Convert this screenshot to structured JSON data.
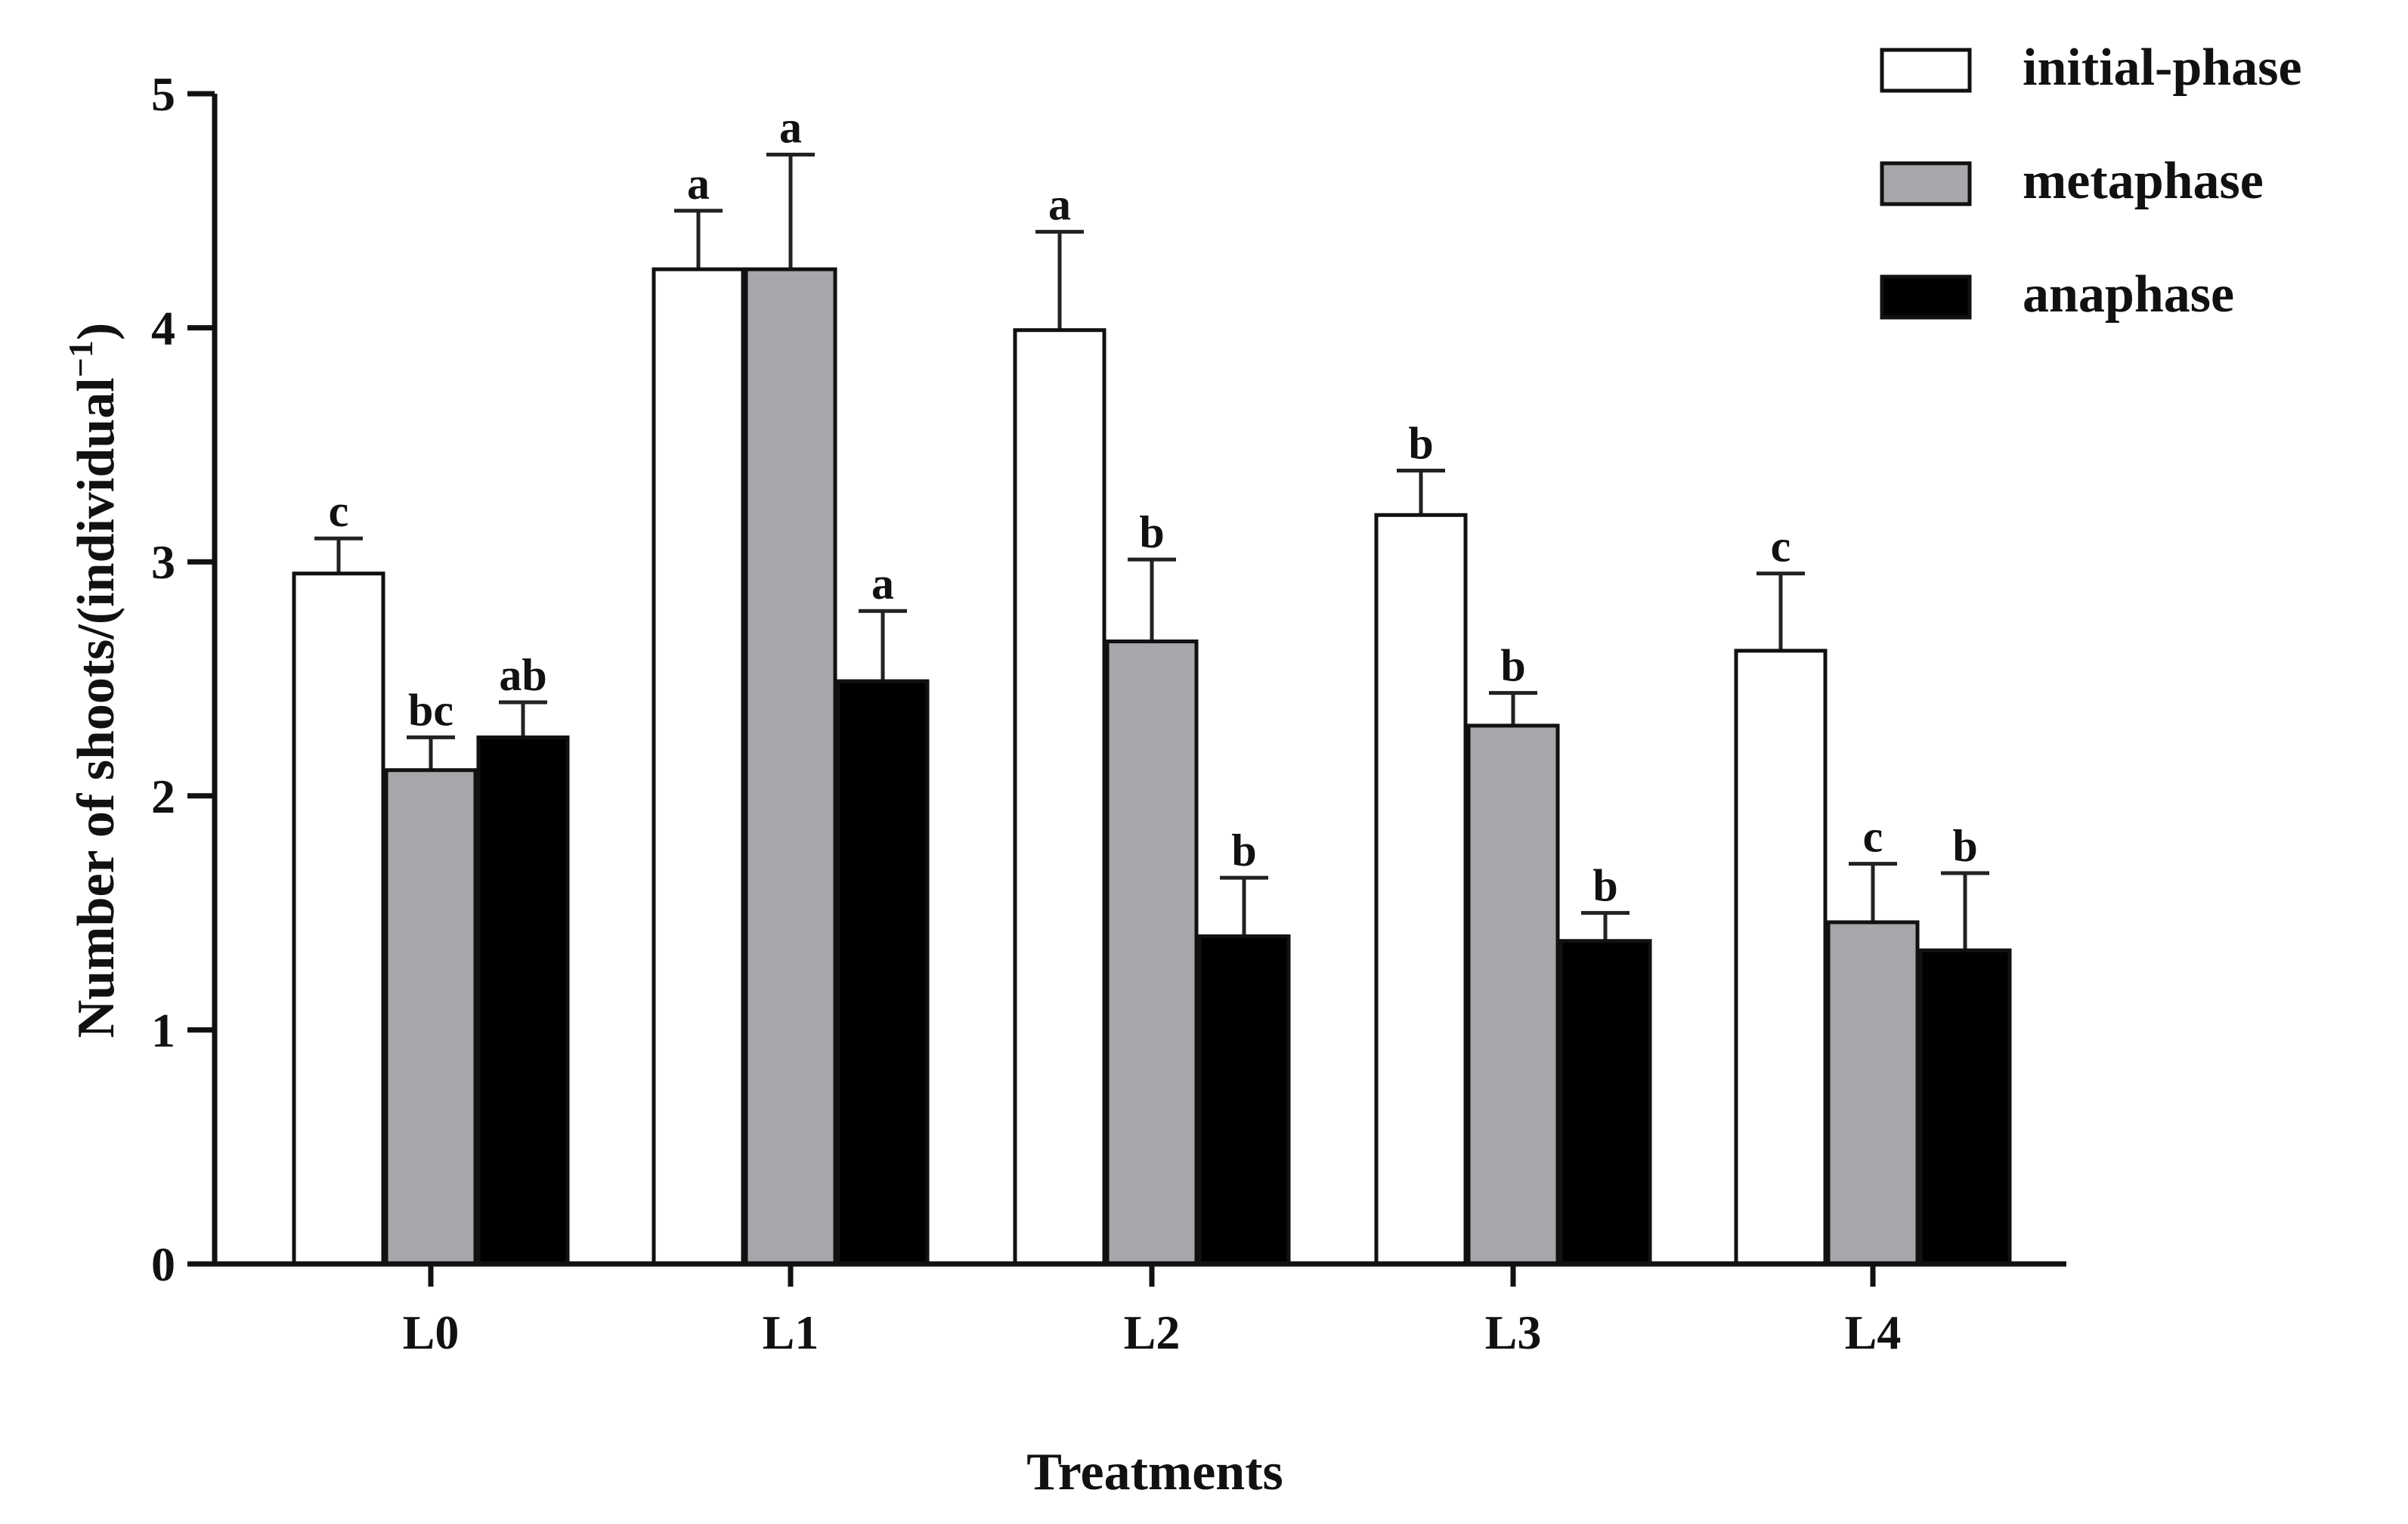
{
  "chart_data": {
    "type": "bar",
    "title": "",
    "xlabel": "Treatments",
    "ylabel": "Number of shoots/(individual",
    "ylabel_superscript": "−1",
    "ylabel_close": ")",
    "ylim": [
      0,
      5
    ],
    "yticks": [
      "0",
      "1",
      "2",
      "3",
      "4",
      "5"
    ],
    "categories": [
      "L0",
      "L1",
      "L2",
      "L3",
      "L4"
    ],
    "legend_position": "top-right",
    "series": [
      {
        "name": "initial-phase",
        "color": "#ffffff",
        "values": [
          2.95,
          4.25,
          3.99,
          3.2,
          2.62
        ],
        "errors": [
          0.15,
          0.25,
          0.42,
          0.19,
          0.33
        ],
        "letters": [
          "c",
          "a",
          "a",
          "b",
          "c"
        ]
      },
      {
        "name": "metaphase",
        "color": "#a6a6ab",
        "values": [
          2.11,
          4.25,
          2.66,
          2.3,
          1.46
        ],
        "errors": [
          0.14,
          0.49,
          0.35,
          0.14,
          0.25
        ],
        "letters": [
          "bc",
          "a",
          "b",
          "b",
          "c"
        ]
      },
      {
        "name": "anaphase",
        "color": "#000000",
        "values": [
          2.25,
          2.49,
          1.4,
          1.38,
          1.34
        ],
        "errors": [
          0.15,
          0.3,
          0.25,
          0.12,
          0.33
        ],
        "letters": [
          "ab",
          "a",
          "b",
          "b",
          "b"
        ]
      }
    ]
  }
}
